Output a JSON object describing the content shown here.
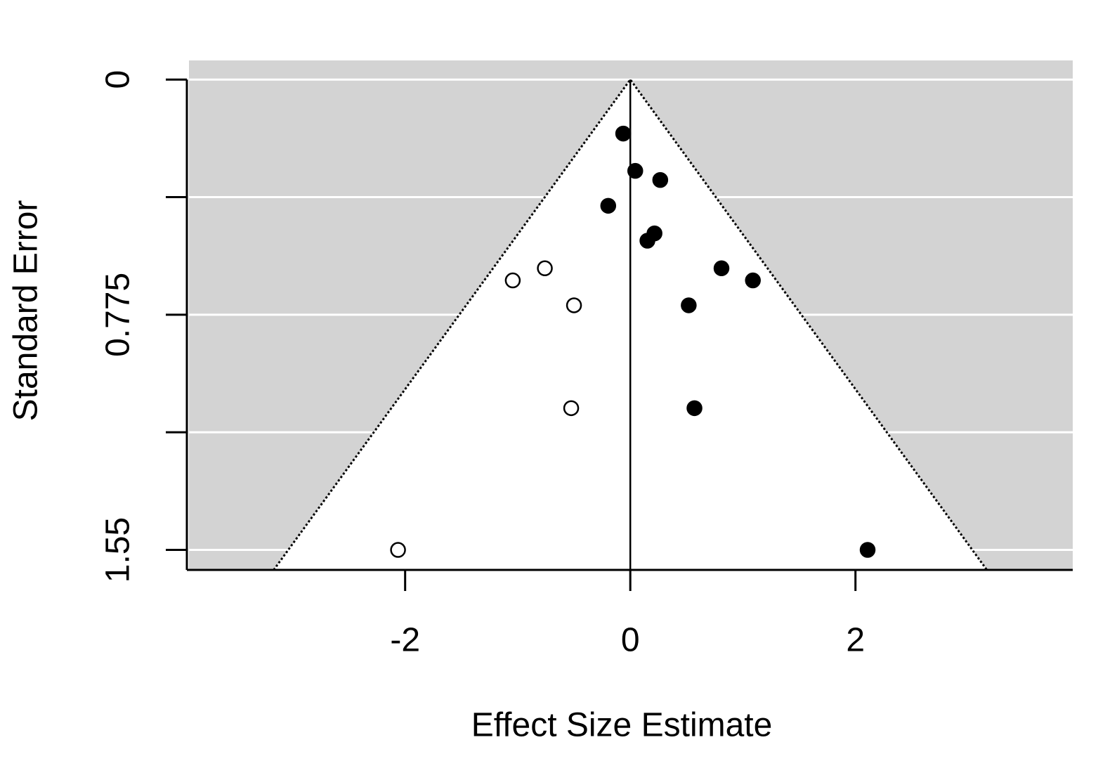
{
  "chart_data": {
    "type": "funnel-scatter",
    "xlabel": "Effect Size Estimate",
    "ylabel": "Standard Error",
    "xlim": [
      -3.92,
      3.93
    ],
    "xticks": [
      -2,
      0,
      2
    ],
    "ylim": [
      -0.063,
      1.616
    ],
    "y_inverted": true,
    "yticks": [
      0,
      0.775,
      1.55
    ],
    "yminorticks": [
      0.3875,
      1.1625
    ],
    "grid": true,
    "background": "#d3d3d3",
    "funnel": {
      "center": 0,
      "z": 1.96
    },
    "series": [
      {
        "color": "#000000",
        "filled": true,
        "x": [
          -0.063,
          0.044,
          0.266,
          -0.196,
          0.152,
          0.215,
          0.81,
          1.089,
          0.519,
          0.57,
          2.108
        ],
        "values": [
          0.178,
          0.301,
          0.331,
          0.416,
          0.531,
          0.507,
          0.622,
          0.662,
          0.744,
          1.083,
          1.55
        ]
      },
      {
        "color": "#000000",
        "filled": false,
        "x": [
          -0.759,
          -1.044,
          -0.5,
          -0.525,
          -2.063
        ],
        "values": [
          0.622,
          0.662,
          0.744,
          1.083,
          1.55
        ]
      }
    ]
  }
}
